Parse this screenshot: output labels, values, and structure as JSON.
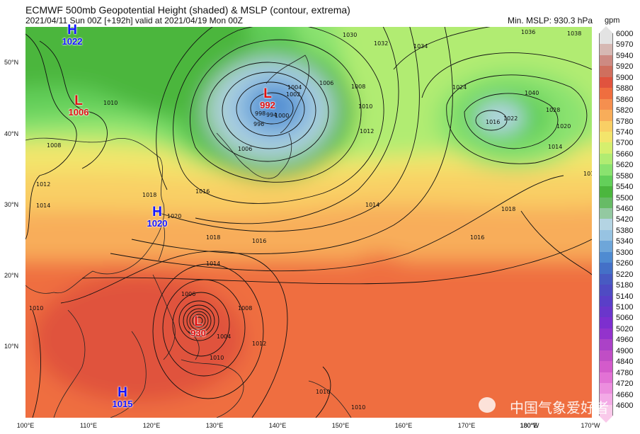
{
  "header": {
    "title": "ECMWF 500mb Geopotential Height (shaded) & MSLP (contour, extrema)",
    "subtitle": "2021/04/11 Sun 00Z [+192h] valid at 2021/04/19 Mon 00Z",
    "min_mslp": "Min. MSLP: 930.3 hPa"
  },
  "colorbar": {
    "unit": "gpm",
    "levels": [
      "6000",
      "5970",
      "5940",
      "5920",
      "5900",
      "5880",
      "5860",
      "5820",
      "5780",
      "5740",
      "5700",
      "5660",
      "5620",
      "5580",
      "5540",
      "5500",
      "5460",
      "5420",
      "5380",
      "5340",
      "5300",
      "5260",
      "5220",
      "5180",
      "5140",
      "5100",
      "5060",
      "5020",
      "4960",
      "4900",
      "4840",
      "4780",
      "4720",
      "4660",
      "4600"
    ],
    "colors": [
      "#e3e3e3",
      "#d6b8b3",
      "#cd8a82",
      "#cf6f5e",
      "#e0533e",
      "#ef6e3f",
      "#f58f4f",
      "#f8ad5a",
      "#f9cf65",
      "#f3e56c",
      "#d6ef6e",
      "#b1ec72",
      "#8ae26f",
      "#63cf5a",
      "#4bb63e",
      "#67bb66",
      "#93c9a1",
      "#b4d4e3",
      "#97c3e2",
      "#6ea6d9",
      "#4f8bd1",
      "#4470c7",
      "#485ac2",
      "#4f4bc3",
      "#5a3fc8",
      "#6a36cb",
      "#7d2fcf",
      "#9333cc",
      "#ab42c7",
      "#c04ec5",
      "#d35bcb",
      "#e272d5",
      "#ec8ede",
      "#f3aae6",
      "#f9c9ea"
    ]
  },
  "map": {
    "lat_labels": [
      "50°N",
      "40°N",
      "30°N",
      "20°N",
      "10°N"
    ],
    "lon_labels": [
      "100°E",
      "110°E",
      "120°E",
      "130°E",
      "140°E",
      "150°E",
      "160°E",
      "170°E",
      "180°W",
      "170°W"
    ],
    "overlap_label": "180°E",
    "contour_labels": [
      "1030",
      "1032",
      "1034",
      "1036",
      "1038",
      "1040",
      "1024",
      "1028",
      "1022",
      "1020",
      "1016",
      "1014",
      "1012",
      "1018",
      "1016",
      "1014",
      "1012",
      "1010",
      "1008",
      "1006",
      "1004",
      "1002",
      "1000",
      "998",
      "996",
      "994",
      "1006",
      "1008",
      "1010",
      "1012",
      "1014",
      "1016",
      "1018",
      "1020",
      "1018",
      "1016",
      "1014",
      "1012",
      "1010",
      "1006",
      "1008",
      "1004",
      "1010",
      "1010",
      "1010"
    ],
    "extrema": [
      {
        "type": "H",
        "value": "1022"
      },
      {
        "type": "L",
        "value": "1006"
      },
      {
        "type": "L",
        "value": "992"
      },
      {
        "type": "H",
        "value": "1020"
      },
      {
        "type": "L",
        "value": "930"
      },
      {
        "type": "H",
        "value": "1015"
      }
    ]
  },
  "watermark": "中国气象爱好者"
}
